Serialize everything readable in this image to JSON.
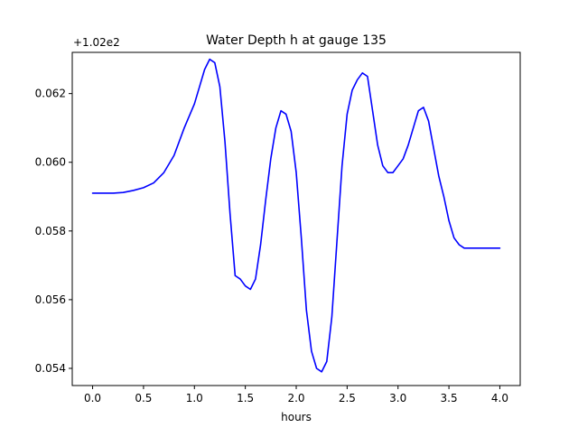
{
  "chart_data": {
    "type": "line",
    "title": "Water Depth h at gauge 135",
    "xlabel": "hours",
    "ylabel": "",
    "offset_label": "+1.02e2",
    "xlim": [
      -0.2,
      4.2
    ],
    "ylim": [
      0.0535,
      0.0632
    ],
    "xticks": [
      0.0,
      0.5,
      1.0,
      1.5,
      2.0,
      2.5,
      3.0,
      3.5,
      4.0
    ],
    "xtick_labels": [
      "0.0",
      "0.5",
      "1.0",
      "1.5",
      "2.0",
      "2.5",
      "3.0",
      "3.5",
      "4.0"
    ],
    "yticks": [
      0.054,
      0.056,
      0.058,
      0.06,
      0.062
    ],
    "ytick_labels": [
      "0.054",
      "0.056",
      "0.058",
      "0.060",
      "0.062"
    ],
    "grid": false,
    "series": [
      {
        "color": "#0000ff",
        "x": [
          0.0,
          0.1,
          0.2,
          0.3,
          0.4,
          0.5,
          0.6,
          0.7,
          0.8,
          0.9,
          1.0,
          1.05,
          1.1,
          1.15,
          1.2,
          1.25,
          1.3,
          1.35,
          1.4,
          1.45,
          1.5,
          1.55,
          1.6,
          1.65,
          1.7,
          1.75,
          1.8,
          1.85,
          1.9,
          1.95,
          2.0,
          2.05,
          2.1,
          2.15,
          2.2,
          2.25,
          2.3,
          2.35,
          2.4,
          2.45,
          2.5,
          2.55,
          2.6,
          2.65,
          2.7,
          2.75,
          2.8,
          2.85,
          2.9,
          2.95,
          3.0,
          3.05,
          3.1,
          3.15,
          3.2,
          3.25,
          3.3,
          3.35,
          3.4,
          3.45,
          3.5,
          3.55,
          3.6,
          3.65,
          3.7,
          3.75,
          3.8,
          3.85,
          3.9,
          3.95,
          4.0
        ],
        "y": [
          0.0591,
          0.0591,
          0.0591,
          0.05912,
          0.05918,
          0.05926,
          0.0594,
          0.0597,
          0.0602,
          0.061,
          0.0617,
          0.0622,
          0.0627,
          0.063,
          0.0629,
          0.0622,
          0.0606,
          0.0585,
          0.0567,
          0.0566,
          0.0564,
          0.0563,
          0.0566,
          0.0576,
          0.0589,
          0.0601,
          0.061,
          0.0615,
          0.0614,
          0.0609,
          0.0597,
          0.0578,
          0.0557,
          0.0545,
          0.054,
          0.0539,
          0.0542,
          0.0555,
          0.0577,
          0.0599,
          0.0614,
          0.0621,
          0.0624,
          0.0626,
          0.0625,
          0.0615,
          0.0605,
          0.0599,
          0.0597,
          0.0597,
          0.0599,
          0.0601,
          0.0605,
          0.061,
          0.0615,
          0.0616,
          0.0612,
          0.0604,
          0.0596,
          0.059,
          0.0583,
          0.0578,
          0.0576,
          0.0575,
          0.0575,
          0.0575,
          0.0575,
          0.0575,
          0.0575,
          0.0575,
          0.0575
        ]
      }
    ]
  }
}
